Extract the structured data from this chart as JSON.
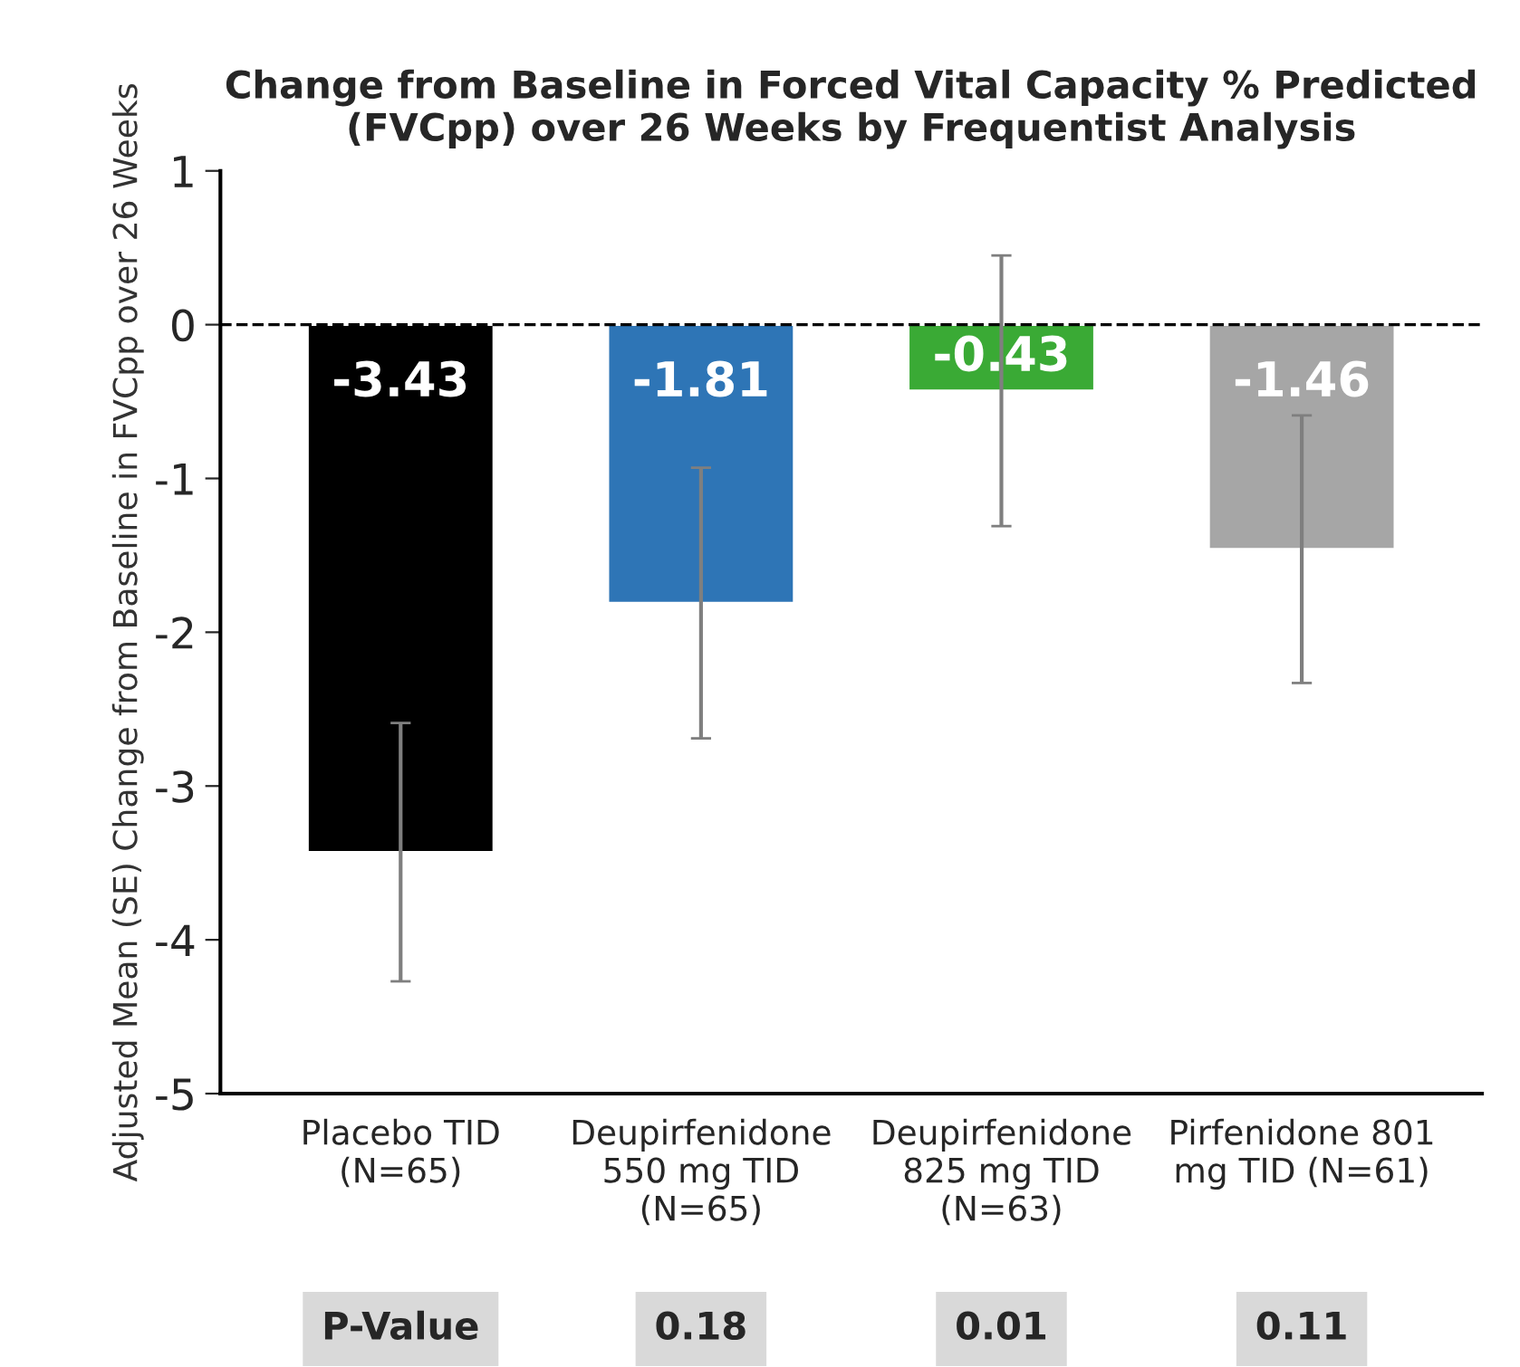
{
  "chart_data": {
    "type": "bar",
    "title": "Change from Baseline in Forced Vital Capacity % Predicted\n(FVCpp) over 26 Weeks by Frequentist Analysis",
    "ylabel": "Adjusted Mean (SE) Change from Baseline in FVCpp over 26 Weeks",
    "categories": [
      "Placebo TID\n(N=65)",
      "Deupirfenidone\n550 mg TID\n(N=65)",
      "Deupirfenidone\n825 mg TID\n(N=63)",
      "Pirfenidone 801\nmg TID (N=61)"
    ],
    "values": [
      -3.43,
      -1.81,
      -0.43,
      -1.46
    ],
    "colors": [
      "#000000",
      "#2e75b6",
      "#3aaa35",
      "#a6a6a6"
    ],
    "errors": [
      0.84,
      0.88,
      0.88,
      0.87
    ],
    "data_labels": true,
    "ylim": [
      -5,
      1
    ],
    "yticks": [
      -5,
      -4,
      -3,
      -2,
      -1,
      0,
      1
    ],
    "ref_lines": [
      {
        "axis": "y",
        "value": 0,
        "line_style": "dashed",
        "color": "#000000"
      }
    ],
    "annotations": [
      "P-Value",
      "0.18",
      "0.01",
      "0.11"
    ],
    "grid": false,
    "legend": false
  }
}
